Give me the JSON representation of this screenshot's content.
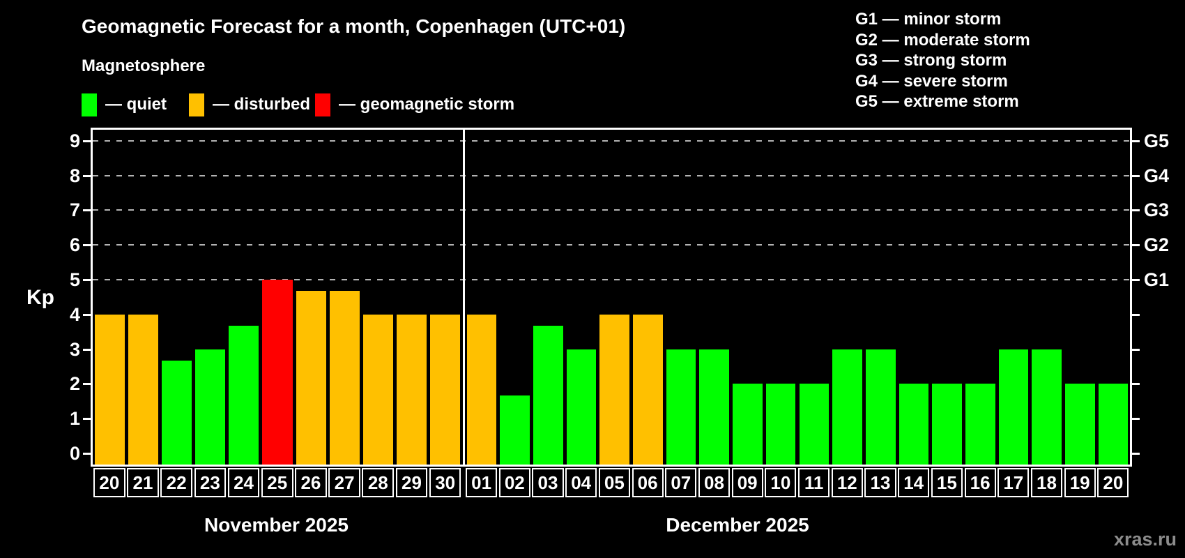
{
  "title": "Geomagnetic Forecast for a month, Copenhagen (UTC+01)",
  "subtitle": "Magnetosphere",
  "watermark": "xras.ru",
  "colors": {
    "quiet": "#00FF00",
    "disturbed": "#FFC000",
    "storm": "#FF0000",
    "background": "#000000",
    "foreground": "#FFFFFF",
    "grid": "#B3B3B3",
    "watermark": "#8C8C8C"
  },
  "legend": {
    "dash": "—",
    "items": [
      {
        "label": "quiet",
        "status": "quiet"
      },
      {
        "label": "disturbed",
        "status": "disturbed"
      },
      {
        "label": "geomagnetic storm",
        "status": "storm"
      }
    ]
  },
  "g_legend": [
    {
      "code": "G1",
      "desc": "minor storm"
    },
    {
      "code": "G2",
      "desc": "moderate storm"
    },
    {
      "code": "G3",
      "desc": "strong storm"
    },
    {
      "code": "G4",
      "desc": "severe storm"
    },
    {
      "code": "G5",
      "desc": "extreme storm"
    }
  ],
  "axis": {
    "y_label": "Kp",
    "y_ticks": [
      0,
      1,
      2,
      3,
      4,
      5,
      6,
      7,
      8,
      9
    ],
    "right_labels": [
      {
        "value": 5,
        "label": "G1"
      },
      {
        "value": 6,
        "label": "G2"
      },
      {
        "value": 7,
        "label": "G3"
      },
      {
        "value": 8,
        "label": "G4"
      },
      {
        "value": 9,
        "label": "G5"
      }
    ]
  },
  "chart_data": {
    "type": "bar",
    "title": "Geomagnetic Forecast for a month, Copenhagen (UTC+01)",
    "ylabel": "Kp",
    "ylim": [
      0,
      9
    ],
    "grid": "dashed horizontal lines at Kp 5,6,7,8,9 (G1-G5)",
    "legend_position": "top-left and top-right",
    "months": [
      {
        "name": "November 2025",
        "points": [
          {
            "day": "20",
            "kp": 4,
            "status": "disturbed"
          },
          {
            "day": "21",
            "kp": 4,
            "status": "disturbed"
          },
          {
            "day": "22",
            "kp": 2.67,
            "status": "quiet"
          },
          {
            "day": "23",
            "kp": 3,
            "status": "quiet"
          },
          {
            "day": "24",
            "kp": 3.67,
            "status": "quiet"
          },
          {
            "day": "25",
            "kp": 5,
            "status": "storm"
          },
          {
            "day": "26",
            "kp": 4.67,
            "status": "disturbed"
          },
          {
            "day": "27",
            "kp": 4.67,
            "status": "disturbed"
          },
          {
            "day": "28",
            "kp": 4,
            "status": "disturbed"
          },
          {
            "day": "29",
            "kp": 4,
            "status": "disturbed"
          },
          {
            "day": "30",
            "kp": 4,
            "status": "disturbed"
          }
        ]
      },
      {
        "name": "December 2025",
        "points": [
          {
            "day": "01",
            "kp": 4,
            "status": "disturbed"
          },
          {
            "day": "02",
            "kp": 1.67,
            "status": "quiet"
          },
          {
            "day": "03",
            "kp": 3.67,
            "status": "quiet"
          },
          {
            "day": "04",
            "kp": 3,
            "status": "quiet"
          },
          {
            "day": "05",
            "kp": 4,
            "status": "disturbed"
          },
          {
            "day": "06",
            "kp": 4,
            "status": "disturbed"
          },
          {
            "day": "07",
            "kp": 3,
            "status": "quiet"
          },
          {
            "day": "08",
            "kp": 3,
            "status": "quiet"
          },
          {
            "day": "09",
            "kp": 2,
            "status": "quiet"
          },
          {
            "day": "10",
            "kp": 2,
            "status": "quiet"
          },
          {
            "day": "11",
            "kp": 2,
            "status": "quiet"
          },
          {
            "day": "12",
            "kp": 3,
            "status": "quiet"
          },
          {
            "day": "13",
            "kp": 3,
            "status": "quiet"
          },
          {
            "day": "14",
            "kp": 2,
            "status": "quiet"
          },
          {
            "day": "15",
            "kp": 2,
            "status": "quiet"
          },
          {
            "day": "16",
            "kp": 2,
            "status": "quiet"
          },
          {
            "day": "17",
            "kp": 3,
            "status": "quiet"
          },
          {
            "day": "18",
            "kp": 3,
            "status": "quiet"
          },
          {
            "day": "19",
            "kp": 2,
            "status": "quiet"
          },
          {
            "day": "20",
            "kp": 2,
            "status": "quiet"
          }
        ]
      }
    ]
  }
}
